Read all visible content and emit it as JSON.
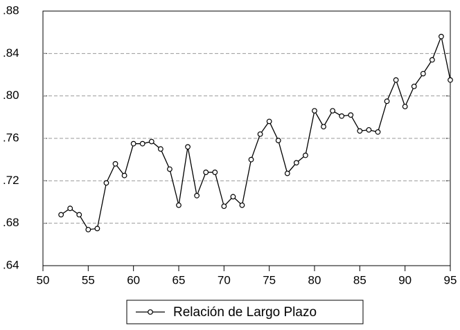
{
  "chart_data": {
    "type": "line",
    "x": [
      52,
      53,
      54,
      55,
      56,
      57,
      58,
      59,
      60,
      61,
      62,
      63,
      64,
      65,
      66,
      67,
      68,
      69,
      70,
      71,
      72,
      73,
      74,
      75,
      76,
      77,
      78,
      79,
      80,
      81,
      82,
      83,
      84,
      85,
      86,
      87,
      88,
      89,
      90,
      91,
      92,
      93,
      94,
      95
    ],
    "series": [
      {
        "name": "Relación de Largo Plazo",
        "color": "#000000",
        "values": [
          0.688,
          0.694,
          0.688,
          0.674,
          0.675,
          0.718,
          0.736,
          0.725,
          0.755,
          0.755,
          0.757,
          0.75,
          0.731,
          0.697,
          0.752,
          0.706,
          0.728,
          0.728,
          0.696,
          0.705,
          0.697,
          0.74,
          0.764,
          0.776,
          0.758,
          0.727,
          0.737,
          0.744,
          0.786,
          0.771,
          0.786,
          0.781,
          0.782,
          0.767,
          0.768,
          0.766,
          0.795,
          0.815,
          0.79,
          0.809,
          0.821,
          0.834,
          0.856,
          0.815
        ]
      }
    ],
    "xlim": [
      50,
      95
    ],
    "xticks": [
      50,
      55,
      60,
      65,
      70,
      75,
      80,
      85,
      90,
      95
    ],
    "ylim": [
      0.64,
      0.88
    ],
    "yticks": [
      {
        "value": 0.64,
        "label": ".64"
      },
      {
        "value": 0.68,
        "label": ".68"
      },
      {
        "value": 0.72,
        "label": ".72"
      },
      {
        "value": 0.76,
        "label": ".76"
      },
      {
        "value": 0.8,
        "label": ".80"
      },
      {
        "value": 0.84,
        "label": ".84"
      },
      {
        "value": 0.88,
        "label": ".88"
      }
    ],
    "grid": true,
    "legend": "bottom"
  }
}
